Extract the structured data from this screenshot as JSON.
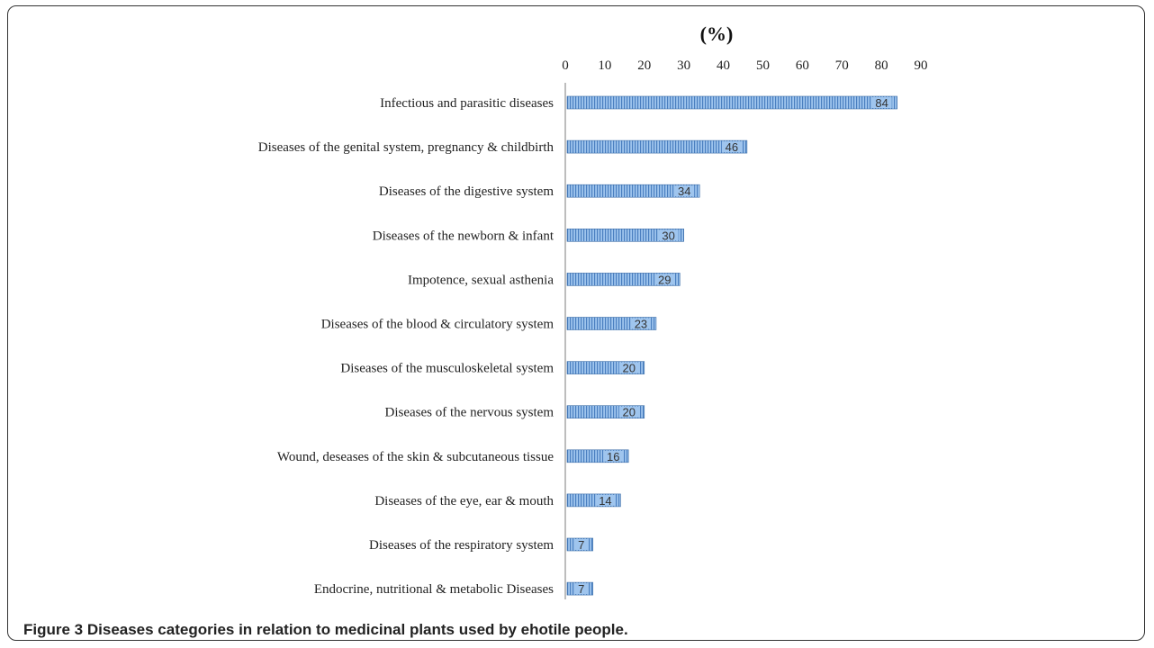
{
  "figure": {
    "caption_label": "Figure 3",
    "caption_text": "Diseases categories in relation to medicinal plants used by ehotile people."
  },
  "chart_data": {
    "type": "bar",
    "orientation": "horizontal",
    "axis_title": "(%)",
    "xlim": [
      0,
      90
    ],
    "ticks": [
      "0",
      "10",
      "20",
      "30",
      "40",
      "50",
      "60",
      "70",
      "80",
      "90"
    ],
    "categories": [
      "Infectious and parasitic diseases",
      "Diseases of the genital system, pregnancy & childbirth",
      "Diseases of the digestive system",
      "Diseases of the newborn & infant",
      "Impotence, sexual asthenia",
      "Diseases of the blood & circulatory system",
      "Diseases of the musculoskeletal system",
      "Diseases of the nervous system",
      "Wound, deseases of the skin & subcutaneous tissue",
      "Diseases of the eye, ear & mouth",
      "Diseases of the respiratory system",
      "Endocrine, nutritional & metabolic Diseases"
    ],
    "values": [
      84,
      46,
      34,
      30,
      29,
      23,
      20,
      20,
      16,
      14,
      7,
      7
    ],
    "data_labels": true,
    "grid": false,
    "legend": false,
    "bar_color": "#6fa8dc",
    "bar_stripe_color": "#3d6ea8"
  }
}
